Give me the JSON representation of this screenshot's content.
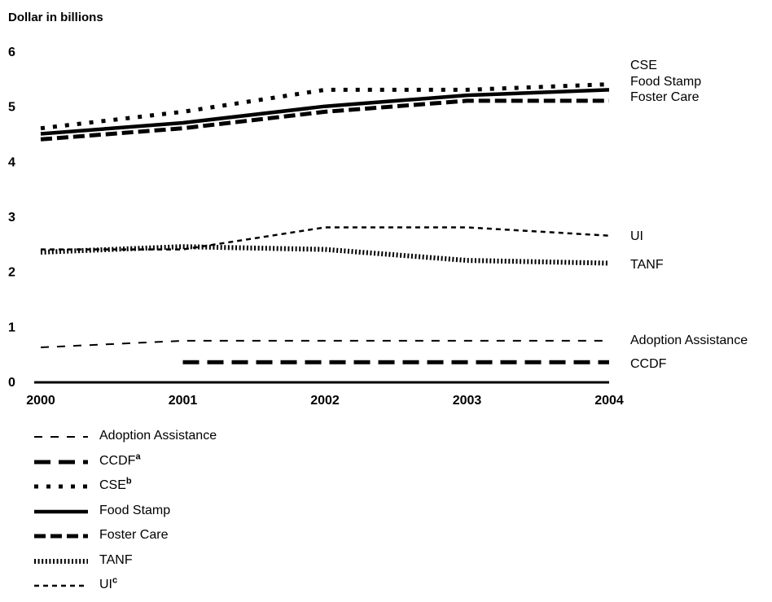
{
  "chart_data": {
    "type": "line",
    "ylabel": "Dollar in billions",
    "xlabel": "",
    "ylim": [
      0,
      6
    ],
    "yticks": [
      "0",
      "1",
      "2",
      "3",
      "4",
      "5",
      "6"
    ],
    "categories": [
      "2000",
      "2001",
      "2002",
      "2003",
      "2004"
    ],
    "series": [
      {
        "name": "CSE",
        "end_label": "CSE",
        "legend_sup": "b",
        "style": "dots",
        "values": [
          4.6,
          4.9,
          5.3,
          5.3,
          5.4
        ]
      },
      {
        "name": "Food Stamp",
        "end_label": "Food Stamp",
        "legend_sup": "",
        "style": "solid",
        "values": [
          4.5,
          4.7,
          5.0,
          5.2,
          5.3
        ]
      },
      {
        "name": "Foster Care",
        "end_label": "Foster Care",
        "legend_sup": "",
        "style": "dash-bold",
        "values": [
          4.4,
          4.6,
          4.9,
          5.1,
          5.1
        ]
      },
      {
        "name": "UI",
        "end_label": "UI",
        "legend_sup": "c",
        "style": "dash-small",
        "values": [
          2.4,
          2.4,
          2.8,
          2.8,
          2.65
        ]
      },
      {
        "name": "TANF",
        "end_label": "TANF",
        "legend_sup": "",
        "style": "dense-dots",
        "values": [
          2.35,
          2.45,
          2.4,
          2.2,
          2.15
        ]
      },
      {
        "name": "Adoption Assistance",
        "end_label": "Adoption Assistance",
        "legend_sup": "",
        "style": "dash-thin",
        "values": [
          0.62,
          0.74,
          0.74,
          0.74,
          0.74
        ]
      },
      {
        "name": "CCDF",
        "end_label": "CCDF",
        "legend_sup": "a",
        "style": "dash-long",
        "values": [
          null,
          0.35,
          0.35,
          0.35,
          0.35
        ]
      }
    ],
    "legend_order": [
      "Adoption Assistance",
      "CCDF",
      "CSE",
      "Food Stamp",
      "Foster Care",
      "TANF",
      "UI"
    ],
    "legend_position": "bottom-left",
    "grid": false
  }
}
